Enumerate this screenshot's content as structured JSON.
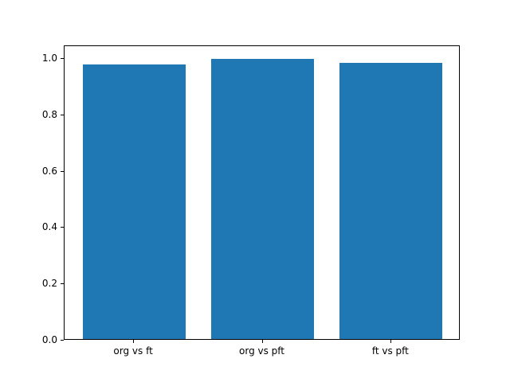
{
  "chart_data": {
    "type": "bar",
    "title": "",
    "xlabel": "",
    "ylabel": "",
    "categories": [
      "org vs ft",
      "org vs pft",
      "ft vs pft"
    ],
    "values": [
      0.975,
      0.995,
      0.98
    ],
    "bar_color": "#1f77b4",
    "ylim": [
      0.0,
      1.045
    ],
    "yticks": [
      0.0,
      0.2,
      0.4,
      0.6,
      0.8,
      1.0
    ],
    "ytick_labels": [
      "0.0",
      "0.2",
      "0.4",
      "0.6",
      "0.8",
      "1.0"
    ],
    "grid": false,
    "legend": null
  }
}
